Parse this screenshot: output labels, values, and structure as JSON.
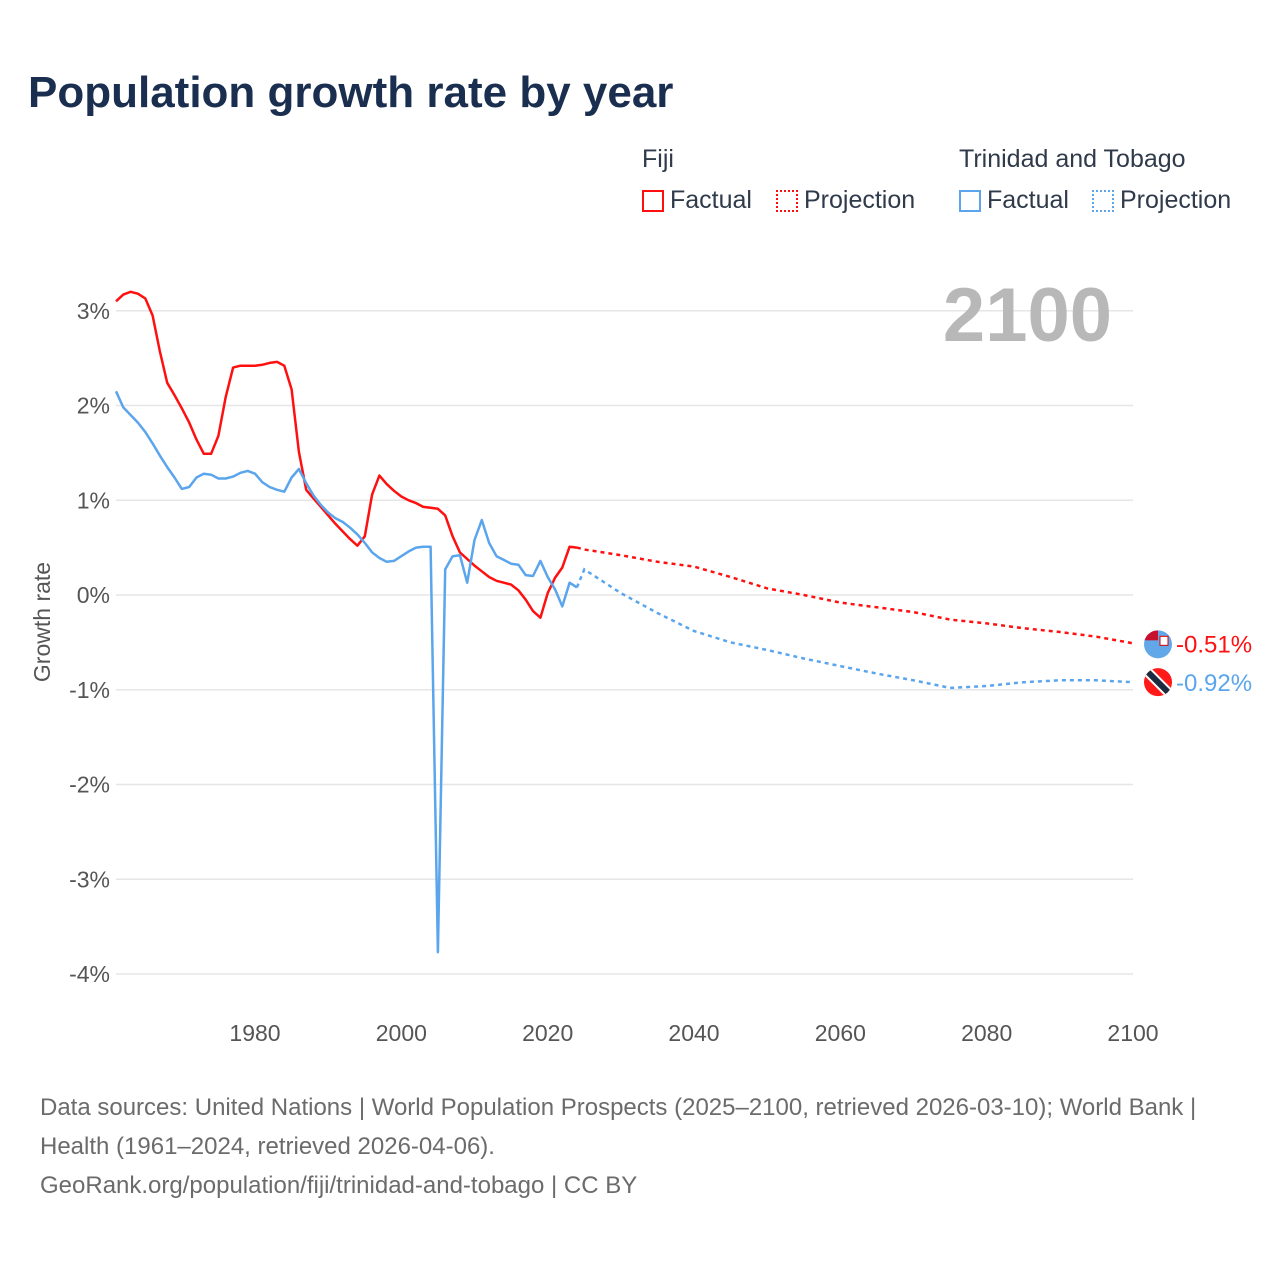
{
  "title": "Population growth rate by year",
  "current_year_label": "2100",
  "legend": {
    "groups": [
      {
        "name": "Fiji",
        "color": "#ff1010",
        "factual": "Factual",
        "projection": "Projection"
      },
      {
        "name": "Trinidad and Tobago",
        "color": "#5aa5ec",
        "factual": "Factual",
        "projection": "Projection"
      }
    ]
  },
  "footer": {
    "sources": "Data sources: United Nations | World Population Prospects (2025–2100, retrieved 2026-03-10); World Bank | Health (1961–2024, retrieved 2026-04-06).",
    "url": "GeoRank.org/population/fiji/trinidad-and-tobago | CC BY"
  },
  "chart_data": {
    "type": "line",
    "title": "Population growth rate by year",
    "xlabel": "",
    "ylabel": "Growth rate",
    "xlim": [
      1961,
      2100
    ],
    "ylim": [
      -4,
      3.3
    ],
    "x_ticks": [
      1980,
      2000,
      2020,
      2040,
      2060,
      2080,
      2100
    ],
    "y_ticks": [
      3,
      2,
      1,
      0,
      -1,
      -2,
      -3,
      -4
    ],
    "y_tick_labels": [
      "3%",
      "2%",
      "1%",
      "0%",
      "-1%",
      "-2%",
      "-3%",
      "-4%"
    ],
    "grid": true,
    "series": [
      {
        "name": "Fiji",
        "color": "#ff1010",
        "end_label": "-0.51%",
        "factual_start": 1961,
        "factual": [
          3.1,
          3.17,
          3.2,
          3.18,
          3.13,
          2.95,
          2.57,
          2.24,
          2.11,
          1.97,
          1.82,
          1.64,
          1.49,
          1.49,
          1.68,
          2.09,
          2.4,
          2.42,
          2.42,
          2.42,
          2.43,
          2.45,
          2.46,
          2.42,
          2.17,
          1.51,
          1.11,
          1.02,
          0.93,
          0.84,
          0.75,
          0.67,
          0.59,
          0.52,
          0.62,
          1.06,
          1.26,
          1.17,
          1.1,
          1.04,
          1.0,
          0.97,
          0.93,
          0.92,
          0.91,
          0.84,
          0.62,
          0.45,
          0.38,
          0.31,
          0.25,
          0.19,
          0.15,
          0.13,
          0.11,
          0.05,
          -0.05,
          -0.17,
          -0.24,
          0.02,
          0.18,
          0.29,
          0.51,
          0.5
        ],
        "projection_x": [
          2024,
          2025,
          2030,
          2035,
          2040,
          2045,
          2050,
          2055,
          2060,
          2065,
          2070,
          2075,
          2080,
          2085,
          2090,
          2095,
          2100
        ],
        "projection": [
          0.5,
          0.48,
          0.42,
          0.35,
          0.3,
          0.19,
          0.07,
          0.0,
          -0.08,
          -0.13,
          -0.18,
          -0.26,
          -0.3,
          -0.35,
          -0.39,
          -0.44,
          -0.51
        ]
      },
      {
        "name": "Trinidad and Tobago",
        "color": "#5aa5ec",
        "end_label": "-0.92%",
        "factual_start": 1961,
        "factual": [
          2.15,
          1.98,
          1.9,
          1.82,
          1.72,
          1.6,
          1.47,
          1.35,
          1.24,
          1.12,
          1.14,
          1.24,
          1.28,
          1.27,
          1.23,
          1.23,
          1.25,
          1.29,
          1.31,
          1.28,
          1.19,
          1.14,
          1.11,
          1.09,
          1.24,
          1.33,
          1.18,
          1.05,
          0.95,
          0.87,
          0.81,
          0.77,
          0.71,
          0.64,
          0.55,
          0.45,
          0.39,
          0.35,
          0.36,
          0.41,
          0.46,
          0.5,
          0.51,
          0.51,
          -3.77,
          0.27,
          0.41,
          0.42,
          0.13,
          0.58,
          0.79,
          0.55,
          0.41,
          0.37,
          0.33,
          0.32,
          0.21,
          0.2,
          0.36,
          0.19,
          0.06,
          -0.12,
          0.13,
          0.08
        ],
        "projection_x": [
          2024,
          2025,
          2030,
          2035,
          2040,
          2045,
          2050,
          2055,
          2060,
          2065,
          2070,
          2075,
          2080,
          2085,
          2090,
          2095,
          2100
        ],
        "projection": [
          0.08,
          0.27,
          0.02,
          -0.19,
          -0.38,
          -0.5,
          -0.58,
          -0.67,
          -0.75,
          -0.83,
          -0.9,
          -0.98,
          -0.96,
          -0.92,
          -0.9,
          -0.9,
          -0.92
        ]
      }
    ]
  }
}
